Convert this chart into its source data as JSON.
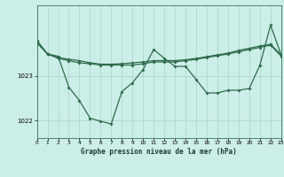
{
  "background_color": "#cceee8",
  "grid_color": "#aad4cc",
  "line_color": "#2d6b4a",
  "title": "Graphe pression niveau de la mer (hPa)",
  "xlim": [
    0,
    23
  ],
  "ylim": [
    1021.6,
    1024.6
  ],
  "yticks": [
    1022,
    1023
  ],
  "xticks": [
    0,
    1,
    2,
    3,
    4,
    5,
    6,
    7,
    8,
    9,
    10,
    11,
    12,
    13,
    14,
    15,
    16,
    17,
    18,
    19,
    20,
    21,
    22,
    23
  ],
  "series1_x": [
    0,
    1,
    2,
    3,
    4,
    5,
    6,
    7,
    8,
    9,
    10,
    11,
    12,
    13,
    14,
    15,
    16,
    17,
    18,
    19,
    20,
    21,
    22,
    23
  ],
  "series1_y": [
    1023.75,
    1023.5,
    1023.4,
    1023.35,
    1023.3,
    1023.28,
    1023.25,
    1023.25,
    1023.25,
    1023.25,
    1023.28,
    1023.32,
    1023.32,
    1023.32,
    1023.35,
    1023.38,
    1023.42,
    1023.46,
    1023.5,
    1023.55,
    1023.6,
    1023.65,
    1023.7,
    1023.45
  ],
  "series2_x": [
    0,
    1,
    2,
    3,
    4,
    5,
    6,
    7,
    8,
    9,
    10,
    11,
    12,
    13,
    14,
    15,
    16,
    17,
    18,
    19,
    20,
    21,
    22,
    23
  ],
  "series2_y": [
    1023.8,
    1023.5,
    1023.42,
    1023.38,
    1023.35,
    1023.3,
    1023.27,
    1023.27,
    1023.28,
    1023.3,
    1023.32,
    1023.35,
    1023.35,
    1023.35,
    1023.37,
    1023.4,
    1023.44,
    1023.48,
    1023.52,
    1023.58,
    1023.63,
    1023.68,
    1023.72,
    1023.48
  ],
  "series3_x": [
    0,
    1,
    2,
    3,
    4,
    5,
    6,
    7,
    8,
    9,
    10,
    11,
    12,
    13,
    14,
    15,
    16,
    17,
    18,
    19,
    20,
    21,
    22,
    23
  ],
  "series3_y": [
    1023.8,
    1023.5,
    1023.45,
    1022.75,
    1022.45,
    1022.05,
    1021.98,
    1021.92,
    1022.65,
    1022.85,
    1023.15,
    1023.6,
    1023.4,
    1023.22,
    1023.22,
    1022.92,
    1022.62,
    1022.62,
    1022.68,
    1022.68,
    1022.72,
    1023.25,
    1024.15,
    1023.48
  ]
}
